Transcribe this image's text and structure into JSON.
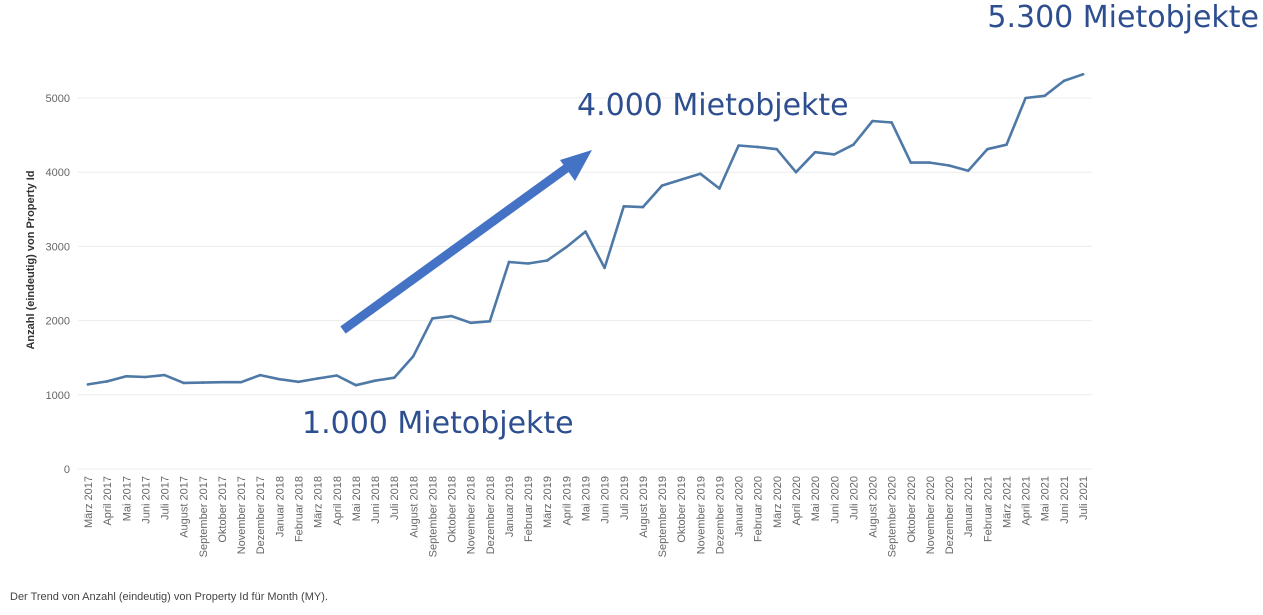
{
  "chart_data": {
    "type": "line",
    "ylabel": "Anzahl (eindeutig) von Property Id",
    "xlabel": "",
    "ylim": [
      0,
      5500
    ],
    "yticks": [
      0,
      1000,
      2000,
      3000,
      4000,
      5000
    ],
    "grid": true,
    "caption": "Der Trend von Anzahl (eindeutig) von Property Id für Month (MY).",
    "categories": [
      "März 2017",
      "April 2017",
      "Mai 2017",
      "Juni 2017",
      "Juli 2017",
      "August 2017",
      "September 2017",
      "Oktober 2017",
      "November 2017",
      "Dezember 2017",
      "Januar 2018",
      "Februar 2018",
      "März 2018",
      "April 2018",
      "Mai 2018",
      "Juni 2018",
      "Juli 2018",
      "August 2018",
      "September 2018",
      "Oktober 2018",
      "November 2018",
      "Dezember 2018",
      "Januar 2019",
      "Februar 2019",
      "März 2019",
      "April 2019",
      "Mai 2019",
      "Juni 2019",
      "Juli 2019",
      "August 2019",
      "September 2019",
      "Oktober 2019",
      "November 2019",
      "Dezember 2019",
      "Januar 2020",
      "Februar 2020",
      "März 2020",
      "April 2020",
      "Mai 2020",
      "Juni 2020",
      "Juli 2020",
      "August 2020",
      "September 2020",
      "Oktober 2020",
      "November 2020",
      "Dezember 2020",
      "Januar 2021",
      "Februar 2021",
      "März 2021",
      "April 2021",
      "Mai 2021",
      "Juni 2021",
      "Juli 2021"
    ],
    "series": [
      {
        "name": "Anzahl (eindeutig) von Property Id",
        "color": "#4e79a7",
        "values": [
          1140,
          1180,
          1250,
          1240,
          1265,
          1160,
          1165,
          1170,
          1170,
          1265,
          1210,
          1175,
          1220,
          1260,
          1130,
          1190,
          1230,
          1520,
          2030,
          2060,
          1970,
          1990,
          2790,
          2770,
          2810,
          2990,
          3200,
          2710,
          3540,
          3530,
          3820,
          3900,
          3980,
          3780,
          4360,
          4340,
          4310,
          4000,
          4270,
          4240,
          4370,
          4690,
          4670,
          4130,
          4130,
          4090,
          4020,
          4310,
          4370,
          5000,
          5030,
          5230,
          5320
        ]
      }
    ],
    "annotations": [
      {
        "text": "1.000 Mietobjekte",
        "color": "#2d4e8f"
      },
      {
        "text": "4.000 Mietobjekte",
        "color": "#2d4e8f"
      },
      {
        "text": "5.300 Mietobjekte",
        "color": "#2d4e8f"
      }
    ],
    "arrow_color": "#4472c4"
  }
}
